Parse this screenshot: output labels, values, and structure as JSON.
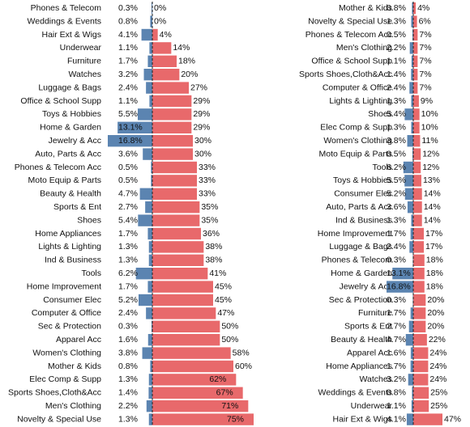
{
  "chart_data": [
    {
      "type": "diverging-bar",
      "categories": [
        "Phones & Telecom",
        "Weddings & Events",
        "Hair Ext & Wigs",
        "Underwear",
        "Furniture",
        "Watches",
        "Luggage & Bags",
        "Office & School Supp",
        "Toys & Hobbies",
        "Home & Garden",
        "Jewelry & Acc",
        "Auto, Parts & Acc",
        "Phones & Telecom Acc",
        "Moto Equip & Parts",
        "Beauty & Health",
        "Sports & Ent",
        "Shoes",
        "Home Appliances",
        "Lights & Lighting",
        "Ind & Business",
        "Tools",
        "Home Improvement",
        "Consumer Elec",
        "Computer & Office",
        "Sec & Protection",
        "Apparel Acc",
        "Women's Clothing",
        "Mother & Kids",
        "Elec Comp & Supp",
        "Sports Shoes,Cloth&Acc",
        "Men's Clothing",
        "Novelty & Special Use"
      ],
      "series": [
        {
          "color": "#5b84b1",
          "side": "left",
          "values": [
            0.3,
            0.8,
            4.1,
            1.1,
            1.7,
            3.2,
            2.4,
            1.1,
            5.5,
            13.1,
            16.8,
            3.6,
            0.5,
            0.5,
            4.7,
            2.7,
            5.4,
            1.7,
            1.3,
            1.3,
            6.2,
            1.7,
            5.2,
            2.4,
            0.3,
            1.6,
            3.8,
            0.8,
            1.3,
            1.4,
            2.2,
            1.3
          ],
          "value_labels": [
            "0.3%",
            "0.8%",
            "4.1%",
            "1.1%",
            "1.7%",
            "3.2%",
            "2.4%",
            "1.1%",
            "5.5%",
            "13.1%",
            "16.8%",
            "3.6%",
            "0.5%",
            "0.5%",
            "4.7%",
            "2.7%",
            "5.4%",
            "1.7%",
            "1.3%",
            "1.3%",
            "6.2%",
            "1.7%",
            "5.2%",
            "2.4%",
            "0.3%",
            "1.6%",
            "3.8%",
            "0.8%",
            "1.3%",
            "1.4%",
            "2.2%",
            "1.3%"
          ]
        },
        {
          "color": "#e8696b",
          "side": "right",
          "values": [
            0,
            0,
            4,
            14,
            18,
            20,
            27,
            29,
            29,
            29,
            30,
            30,
            33,
            33,
            33,
            35,
            35,
            36,
            38,
            38,
            41,
            45,
            45,
            47,
            50,
            50,
            58,
            60,
            62,
            67,
            71,
            75
          ],
          "value_labels": [
            "0%",
            "0%",
            "4%",
            "14%",
            "18%",
            "20%",
            "27%",
            "29%",
            "29%",
            "29%",
            "30%",
            "30%",
            "33%",
            "33%",
            "33%",
            "35%",
            "35%",
            "36%",
            "38%",
            "38%",
            "41%",
            "45%",
            "45%",
            "47%",
            "50%",
            "50%",
            "58%",
            "60%",
            "62%",
            "67%",
            "71%",
            "75%"
          ]
        }
      ]
    },
    {
      "type": "diverging-bar",
      "categories": [
        "Mother & Kids",
        "Novelty & Special Use",
        "Phones & Telecom Acc",
        "Men's Clothing",
        "Office & School Supp",
        "Sports Shoes,Cloth&Acc",
        "Computer & Office",
        "Lights & Lighting",
        "Shoes",
        "Elec Comp & Supp",
        "Women's Clothing",
        "Moto Equip & Parts",
        "Tools",
        "Toys & Hobbies",
        "Consumer Elec",
        "Auto, Parts & Acc",
        "Ind & Business",
        "Home Improvement",
        "Luggage & Bags",
        "Phones & Telecom",
        "Home & Garden",
        "Jewelry & Acc",
        "Sec & Protection",
        "Furniture",
        "Sports & Ent",
        "Beauty & Health",
        "Apparel Acc",
        "Home Appliances",
        "Watches",
        "Weddings & Events",
        "Underwear",
        "Hair Ext & Wigs"
      ],
      "series": [
        {
          "color": "#5b84b1",
          "side": "left",
          "values": [
            0.8,
            1.3,
            0.5,
            2.2,
            1.1,
            1.4,
            2.4,
            1.3,
            5.4,
            1.3,
            3.8,
            0.5,
            6.2,
            5.5,
            5.2,
            3.6,
            1.3,
            1.7,
            2.4,
            0.3,
            13.1,
            16.8,
            0.3,
            1.7,
            2.7,
            4.7,
            1.6,
            1.7,
            3.2,
            0.8,
            1.1,
            4.1
          ],
          "value_labels": [
            "0.8%",
            "1.3%",
            "0.5%",
            "2.2%",
            "1.1%",
            "1.4%",
            "2.4%",
            "1.3%",
            "5.4%",
            "1.3%",
            "3.8%",
            "0.5%",
            "6.2%",
            "5.5%",
            "5.2%",
            "3.6%",
            "1.3%",
            "1.7%",
            "2.4%",
            "0.3%",
            "13.1%",
            "16.8%",
            "0.3%",
            "1.7%",
            "2.7%",
            "4.7%",
            "1.6%",
            "1.7%",
            "3.2%",
            "0.8%",
            "1.1%",
            "4.1%"
          ]
        },
        {
          "color": "#e8696b",
          "side": "right",
          "values": [
            4,
            6,
            7,
            7,
            7,
            7,
            7,
            9,
            10,
            10,
            11,
            12,
            12,
            13,
            14,
            14,
            14,
            17,
            17,
            18,
            18,
            18,
            20,
            20,
            20,
            22,
            24,
            24,
            24,
            25,
            25,
            47
          ],
          "value_labels": [
            "4%",
            "6%",
            "7%",
            "7%",
            "7%",
            "7%",
            "7%",
            "9%",
            "10%",
            "10%",
            "11%",
            "12%",
            "12%",
            "13%",
            "14%",
            "14%",
            "14%",
            "17%",
            "17%",
            "18%",
            "18%",
            "18%",
            "20%",
            "20%",
            "20%",
            "22%",
            "24%",
            "24%",
            "24%",
            "25%",
            "25%",
            "47%"
          ]
        }
      ]
    }
  ]
}
